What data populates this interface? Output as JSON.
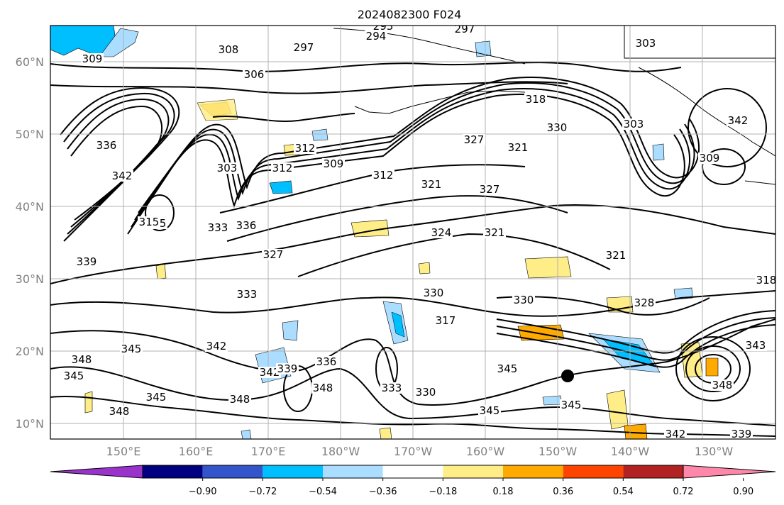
{
  "title": "2024082300 F024",
  "lat_labels": [
    "60°N",
    "50°N",
    "40°N",
    "30°N",
    "20°N",
    "10°N"
  ],
  "lon_labels": [
    "150°E",
    "160°E",
    "170°E",
    "180°W",
    "170°W",
    "160°W",
    "150°W",
    "140°W",
    "130°W"
  ],
  "colorbar": {
    "ticks": [
      "−0.90",
      "−0.72",
      "−0.54",
      "−0.36",
      "−0.18",
      "0.18",
      "0.36",
      "0.54",
      "0.72",
      "0.90"
    ],
    "colors": [
      "#9933cc",
      "#000080",
      "#3355cc",
      "#00bfff",
      "#aaddff",
      "#ffffff",
      "#ffee88",
      "#ffaa00",
      "#ff4400",
      "#b22222",
      "#ff88aa"
    ]
  },
  "contour_labels": [
    "309",
    "297",
    "294",
    "297",
    "293",
    "303",
    "306",
    "308",
    "336",
    "342",
    "312",
    "303",
    "312",
    "309",
    "318",
    "330",
    "303",
    "321",
    "327",
    "309",
    "315",
    "315",
    "333",
    "336",
    "312",
    "321",
    "324",
    "321",
    "327",
    "327",
    "321",
    "342",
    "339",
    "333",
    "330",
    "317",
    "318",
    "330",
    "328",
    "345",
    "342",
    "348",
    "345",
    "342",
    "339",
    "336",
    "348",
    "333",
    "330",
    "345",
    "345",
    "345",
    "348",
    "343",
    "348",
    "348",
    "345",
    "342",
    "339"
  ],
  "legend_colors": {
    "positive_fill": "#ffee88",
    "negative_fill": "#aaddff",
    "strong_negative": "#00bfff",
    "strong_positive": "#ffaa00",
    "contour": "#000000",
    "grid": "#b0b0b0"
  }
}
